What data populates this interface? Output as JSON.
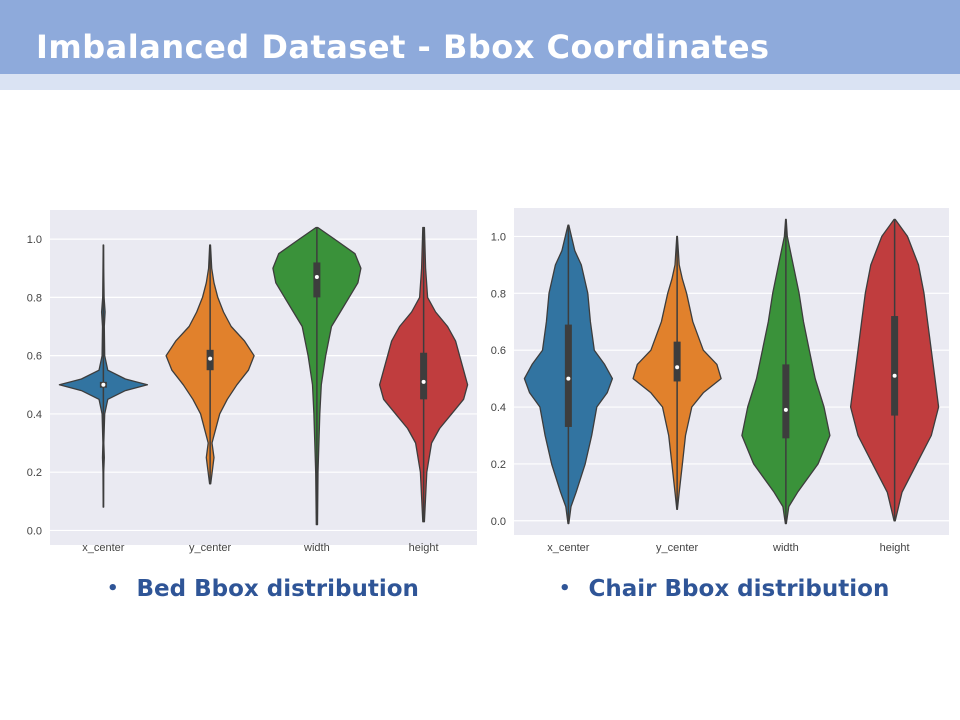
{
  "slide": {
    "title": "Imbalanced Dataset - Bbox Coordinates",
    "captions": [
      "Bed Bbox distribution",
      "Chair Bbox distribution"
    ]
  },
  "chart_data": [
    {
      "type": "violin",
      "categories": [
        "x_center",
        "y_center",
        "width",
        "height"
      ],
      "ylim": [
        -0.05,
        1.1
      ],
      "yticks": [
        "0.0",
        "0.2",
        "0.4",
        "0.6",
        "0.8",
        "1.0"
      ],
      "grid": true,
      "background": "#eaeaf2",
      "colors": [
        "#3274a1",
        "#e1812c",
        "#3a923a",
        "#c03d3e"
      ],
      "series": [
        {
          "category": "x_center",
          "min": 0.08,
          "max": 0.98,
          "q1": 0.49,
          "median": 0.5,
          "q3": 0.51,
          "density": [
            [
              0.08,
              0.002
            ],
            [
              0.2,
              0.004
            ],
            [
              0.25,
              0.01
            ],
            [
              0.3,
              0.005
            ],
            [
              0.4,
              0.015
            ],
            [
              0.45,
              0.05
            ],
            [
              0.48,
              0.25
            ],
            [
              0.5,
              0.5
            ],
            [
              0.52,
              0.25
            ],
            [
              0.55,
              0.05
            ],
            [
              0.6,
              0.015
            ],
            [
              0.7,
              0.01
            ],
            [
              0.75,
              0.02
            ],
            [
              0.8,
              0.008
            ],
            [
              0.9,
              0.004
            ],
            [
              0.98,
              0.002
            ]
          ]
        },
        {
          "category": "y_center",
          "min": 0.16,
          "max": 0.98,
          "q1": 0.55,
          "median": 0.59,
          "q3": 0.62,
          "density": [
            [
              0.16,
              0.003
            ],
            [
              0.25,
              0.02
            ],
            [
              0.3,
              0.01
            ],
            [
              0.4,
              0.05
            ],
            [
              0.45,
              0.09
            ],
            [
              0.5,
              0.14
            ],
            [
              0.55,
              0.2
            ],
            [
              0.6,
              0.23
            ],
            [
              0.65,
              0.18
            ],
            [
              0.7,
              0.11
            ],
            [
              0.75,
              0.07
            ],
            [
              0.8,
              0.04
            ],
            [
              0.85,
              0.02
            ],
            [
              0.9,
              0.008
            ],
            [
              0.98,
              0.002
            ]
          ]
        },
        {
          "category": "width",
          "min": 0.02,
          "max": 1.04,
          "q1": 0.8,
          "median": 0.87,
          "q3": 0.92,
          "density": [
            [
              0.02,
              0.002
            ],
            [
              0.2,
              0.004
            ],
            [
              0.4,
              0.01
            ],
            [
              0.5,
              0.015
            ],
            [
              0.6,
              0.03
            ],
            [
              0.7,
              0.05
            ],
            [
              0.75,
              0.08
            ],
            [
              0.8,
              0.11
            ],
            [
              0.85,
              0.14
            ],
            [
              0.9,
              0.15
            ],
            [
              0.95,
              0.13
            ],
            [
              1.0,
              0.06
            ],
            [
              1.04,
              0.003
            ]
          ]
        },
        {
          "category": "height",
          "min": 0.03,
          "max": 1.04,
          "q1": 0.45,
          "median": 0.51,
          "q3": 0.61,
          "density": [
            [
              0.03,
              0.002
            ],
            [
              0.2,
              0.008
            ],
            [
              0.3,
              0.02
            ],
            [
              0.35,
              0.04
            ],
            [
              0.4,
              0.07
            ],
            [
              0.45,
              0.1
            ],
            [
              0.5,
              0.11
            ],
            [
              0.55,
              0.1
            ],
            [
              0.6,
              0.09
            ],
            [
              0.65,
              0.08
            ],
            [
              0.7,
              0.06
            ],
            [
              0.75,
              0.03
            ],
            [
              0.8,
              0.01
            ],
            [
              0.9,
              0.005
            ],
            [
              1.04,
              0.002
            ]
          ]
        }
      ]
    },
    {
      "type": "violin",
      "categories": [
        "x_center",
        "y_center",
        "width",
        "height"
      ],
      "ylim": [
        -0.05,
        1.1
      ],
      "yticks": [
        "0.0",
        "0.2",
        "0.4",
        "0.6",
        "0.8",
        "1.0"
      ],
      "grid": true,
      "background": "#eaeaf2",
      "colors": [
        "#3274a1",
        "#e1812c",
        "#3a923a",
        "#c03d3e"
      ],
      "series": [
        {
          "category": "x_center",
          "min": -0.01,
          "max": 1.04,
          "q1": 0.33,
          "median": 0.5,
          "q3": 0.69,
          "density": [
            [
              -0.01,
              0.003
            ],
            [
              0.05,
              0.02
            ],
            [
              0.1,
              0.06
            ],
            [
              0.2,
              0.13
            ],
            [
              0.3,
              0.18
            ],
            [
              0.4,
              0.22
            ],
            [
              0.45,
              0.3
            ],
            [
              0.5,
              0.34
            ],
            [
              0.55,
              0.28
            ],
            [
              0.6,
              0.2
            ],
            [
              0.7,
              0.17
            ],
            [
              0.8,
              0.15
            ],
            [
              0.9,
              0.1
            ],
            [
              0.95,
              0.05
            ],
            [
              1.04,
              0.003
            ]
          ]
        },
        {
          "category": "y_center",
          "min": 0.04,
          "max": 1.0,
          "q1": 0.49,
          "median": 0.54,
          "q3": 0.63,
          "density": [
            [
              0.04,
              0.003
            ],
            [
              0.1,
              0.02
            ],
            [
              0.2,
              0.05
            ],
            [
              0.3,
              0.08
            ],
            [
              0.4,
              0.14
            ],
            [
              0.45,
              0.25
            ],
            [
              0.5,
              0.42
            ],
            [
              0.55,
              0.38
            ],
            [
              0.6,
              0.25
            ],
            [
              0.7,
              0.15
            ],
            [
              0.8,
              0.09
            ],
            [
              0.85,
              0.05
            ],
            [
              0.9,
              0.02
            ],
            [
              1.0,
              0.003
            ]
          ]
        },
        {
          "category": "width",
          "min": -0.01,
          "max": 1.06,
          "q1": 0.29,
          "median": 0.39,
          "q3": 0.55,
          "density": [
            [
              -0.01,
              0.003
            ],
            [
              0.05,
              0.02
            ],
            [
              0.1,
              0.08
            ],
            [
              0.2,
              0.22
            ],
            [
              0.3,
              0.3
            ],
            [
              0.4,
              0.26
            ],
            [
              0.5,
              0.2
            ],
            [
              0.6,
              0.16
            ],
            [
              0.7,
              0.12
            ],
            [
              0.8,
              0.09
            ],
            [
              0.9,
              0.05
            ],
            [
              1.0,
              0.01
            ],
            [
              1.06,
              0.002
            ]
          ]
        },
        {
          "category": "height",
          "min": 0.0,
          "max": 1.06,
          "q1": 0.37,
          "median": 0.51,
          "q3": 0.72,
          "density": [
            [
              0.0,
              0.003
            ],
            [
              0.1,
              0.04
            ],
            [
              0.2,
              0.12
            ],
            [
              0.3,
              0.2
            ],
            [
              0.4,
              0.24
            ],
            [
              0.5,
              0.22
            ],
            [
              0.6,
              0.2
            ],
            [
              0.7,
              0.18
            ],
            [
              0.8,
              0.16
            ],
            [
              0.9,
              0.13
            ],
            [
              1.0,
              0.07
            ],
            [
              1.06,
              0.003
            ]
          ]
        }
      ]
    }
  ]
}
